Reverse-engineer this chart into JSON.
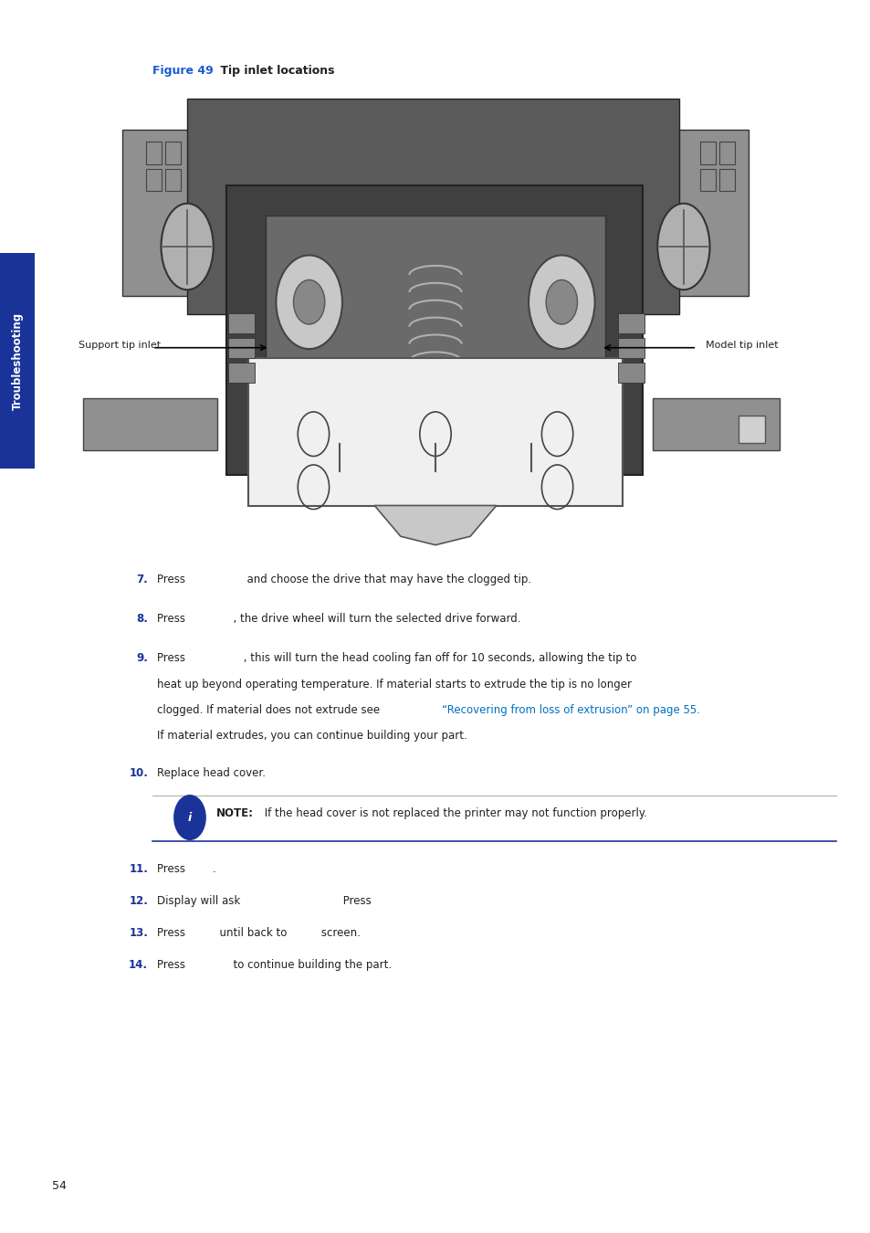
{
  "bg_color": "#ffffff",
  "sidebar_color": "#1a3399",
  "sidebar_text": "Troubleshooting",
  "figure_label_blue": "Figure 49",
  "figure_label_black": " Tip inlet locations",
  "support_tip_label": "Support tip inlet",
  "model_tip_label": "Model tip inlet",
  "note_text": "NOTE: If the head cover is not replaced the printer may not function properly.",
  "page_num": "54"
}
